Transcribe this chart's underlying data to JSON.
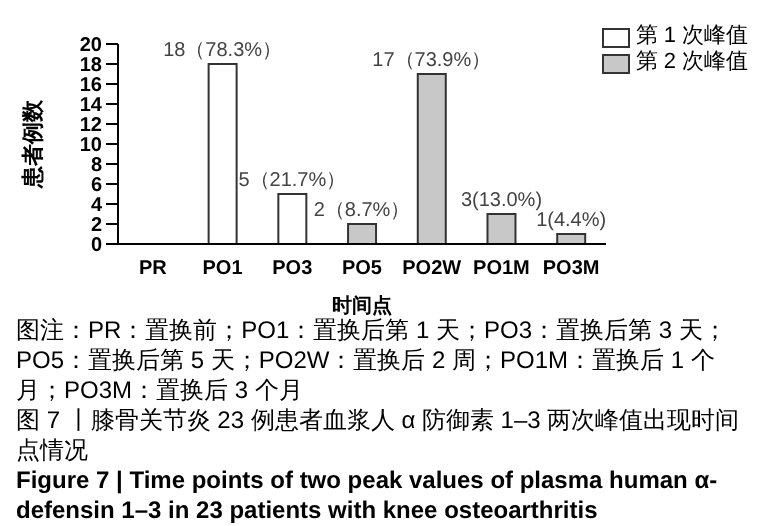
{
  "chart_data": {
    "type": "bar",
    "xlabel": "时间点",
    "ylabel": "患者例数",
    "categories": [
      "PR",
      "PO1",
      "PO3",
      "PO5",
      "PO2W",
      "PO1M",
      "PO3M"
    ],
    "stacked": true,
    "ylim": [
      0,
      20
    ],
    "yticks": [
      0,
      2,
      4,
      6,
      8,
      10,
      12,
      14,
      16,
      18,
      20
    ],
    "legend": "top right",
    "series": [
      {
        "name": "第 1 次峰值",
        "color": "#ffffff",
        "values": [
          null,
          18,
          5,
          null,
          null,
          null,
          null
        ],
        "value_labels": [
          null,
          "18（78.3%）",
          "5（21.7%）",
          null,
          null,
          null,
          null
        ]
      },
      {
        "name": "第 2 次峰值",
        "color": "#c8c8c8",
        "values": [
          null,
          null,
          null,
          2,
          17,
          3,
          1
        ],
        "value_labels": [
          null,
          null,
          null,
          "2（8.7%）",
          "17（73.9%）",
          "3(13.0%)",
          "1(4.4%)"
        ]
      }
    ],
    "annotations": [
      "图注：PR：置换前；PO1：置换后第 1 天；PO3：置换后第 3 天；PO5：置换后第 5 天；PO2W：置换后 2 周；PO1M：置换后 1 个月；PO3M：置换后 3 个月"
    ],
    "title": "图 7 丨膝骨关节炎 23 例患者血浆人 α 防御素 1–3 两次峰值出现时间点情况",
    "subtitle": "Figure 7 | Time points of two peak values of plasma human α-defensin 1–3 in 23 patients with knee osteoarthritis"
  }
}
